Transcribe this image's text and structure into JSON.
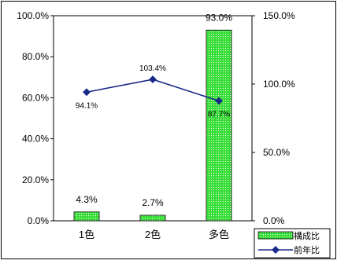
{
  "chart_data": {
    "type": "bar+line",
    "categories": [
      "1色",
      "2色",
      "多色"
    ],
    "bar_series": {
      "name": "構成比",
      "values": [
        4.3,
        2.7,
        93.0
      ],
      "labels": [
        "4.3%",
        "2.7%",
        "93.0%"
      ],
      "color": "#33dd33"
    },
    "line_series": {
      "name": "前年比",
      "values": [
        94.1,
        103.4,
        87.7
      ],
      "labels": [
        "94.1%",
        "103.4%",
        "87.7%"
      ],
      "color": "#1a2a8a"
    },
    "y_left": {
      "min": 0,
      "max": 100,
      "step": 20,
      "ticks": [
        "0.0%",
        "20.0%",
        "40.0%",
        "60.0%",
        "80.0%",
        "100.0%"
      ]
    },
    "y_right": {
      "min": 0,
      "max": 150,
      "step": 50,
      "ticks": [
        "0.0%",
        "50.0%",
        "100.0%",
        "150.0%"
      ]
    },
    "legend": {
      "position": "bottom-right",
      "items": [
        "構成比",
        "前年比"
      ]
    },
    "grid": false
  }
}
